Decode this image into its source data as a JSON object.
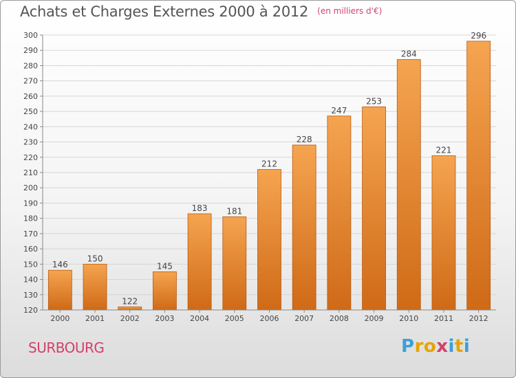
{
  "header": {
    "title": "Achats et Charges Externes 2000 à 2012",
    "subtitle": "(en milliers d'€)"
  },
  "footer": {
    "town": "SURBOURG",
    "logo": {
      "letters": [
        {
          "char": "P",
          "color": "#3aa0d8"
        },
        {
          "char": "r",
          "color": "#e6a400"
        },
        {
          "char": "o",
          "color": "#e6a400"
        },
        {
          "char": "x",
          "color": "#d1416b"
        },
        {
          "char": "i",
          "color": "#3aa0d8"
        },
        {
          "char": "t",
          "color": "#e6a400"
        },
        {
          "char": "i",
          "color": "#3aa0d8"
        }
      ]
    }
  },
  "chart_data": {
    "type": "bar",
    "title": "Achats et Charges Externes 2000 à 2012",
    "subtitle": "(en milliers d'€)",
    "xlabel": "",
    "ylabel": "",
    "categories": [
      "2000",
      "2001",
      "2002",
      "2003",
      "2004",
      "2005",
      "2006",
      "2007",
      "2008",
      "2009",
      "2010",
      "2011",
      "2012"
    ],
    "values": [
      146,
      150,
      122,
      145,
      183,
      181,
      212,
      228,
      247,
      253,
      284,
      221,
      296
    ],
    "ylim": [
      120,
      300
    ],
    "yticks": [
      120,
      130,
      140,
      150,
      160,
      170,
      180,
      190,
      200,
      210,
      220,
      230,
      240,
      250,
      260,
      270,
      280,
      290,
      300
    ],
    "grid": true,
    "legend": "none",
    "colors": {
      "bar_top": "#f5a450",
      "bar_bottom": "#cf6a17",
      "bar_edge": "#b95a10"
    }
  }
}
